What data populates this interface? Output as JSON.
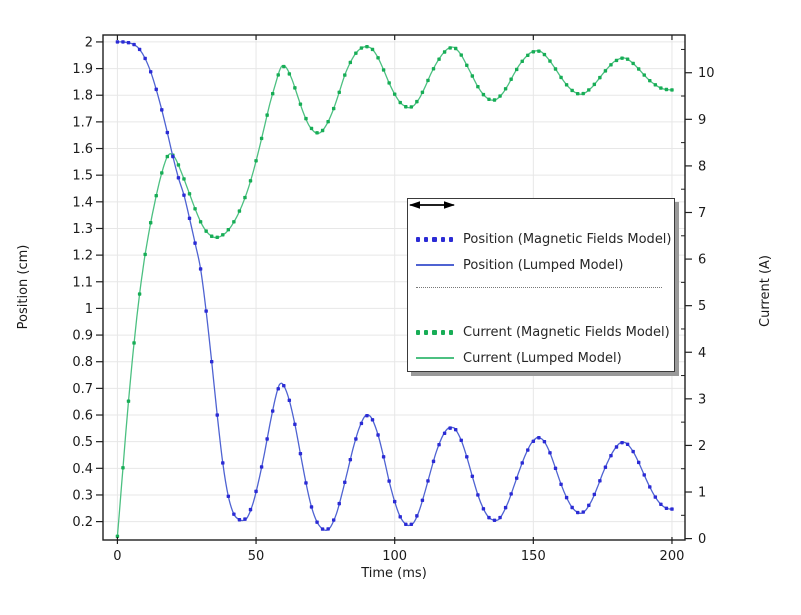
{
  "chart_data": {
    "type": "line",
    "title": "",
    "x_axis": {
      "label": "Time (ms)",
      "min": -5.2,
      "max": 204.7,
      "ticks": [
        {
          "v": 0,
          "label": "0"
        },
        {
          "v": 50,
          "label": "50"
        },
        {
          "v": 100,
          "label": "100"
        },
        {
          "v": 150,
          "label": "150"
        },
        {
          "v": 200,
          "label": "200"
        }
      ]
    },
    "left_axis": {
      "label": "Position (cm)",
      "min": 0.131,
      "max": 2.026,
      "ticks": [
        {
          "v": 2,
          "label": "2"
        },
        {
          "v": 1.9,
          "label": "1.9"
        },
        {
          "v": 1.8,
          "label": "1.8"
        },
        {
          "v": 1.7,
          "label": "1.7"
        },
        {
          "v": 1.6,
          "label": "1.6"
        },
        {
          "v": 1.5,
          "label": "1.5"
        },
        {
          "v": 1.4,
          "label": "1.4"
        },
        {
          "v": 1.3,
          "label": "1.3"
        },
        {
          "v": 1.2,
          "label": "1.2"
        },
        {
          "v": 1.1,
          "label": "1.1"
        },
        {
          "v": 1,
          "label": "1"
        },
        {
          "v": 0.9,
          "label": "0.9"
        },
        {
          "v": 0.8,
          "label": "0.8"
        },
        {
          "v": 0.7,
          "label": "0.7"
        },
        {
          "v": 0.6,
          "label": "0.6"
        },
        {
          "v": 0.5,
          "label": "0.5"
        },
        {
          "v": 0.4,
          "label": "0.4"
        },
        {
          "v": 0.3,
          "label": "0.3"
        },
        {
          "v": 0.2,
          "label": "0.2"
        }
      ]
    },
    "right_axis": {
      "label": "Current (A)",
      "min": -0.03,
      "max": 10.81,
      "ticks": [
        {
          "v": 10,
          "label": "10"
        },
        {
          "v": 9,
          "label": "9"
        },
        {
          "v": 8,
          "label": "8"
        },
        {
          "v": 7,
          "label": "7"
        },
        {
          "v": 6,
          "label": "6"
        },
        {
          "v": 5,
          "label": "5"
        },
        {
          "v": 4,
          "label": "4"
        },
        {
          "v": 3,
          "label": "3"
        },
        {
          "v": 2,
          "label": "2"
        },
        {
          "v": 1,
          "label": "1"
        },
        {
          "v": 0,
          "label": "0"
        }
      ],
      "minor_ticks": [
        0.5,
        1.5,
        2.5,
        3.5,
        4.5,
        5.5,
        6.5,
        7.5,
        8.5,
        9.5,
        10.5
      ]
    },
    "grid": {
      "color": "#e7e7e7",
      "vertical_at_x_ticks": true,
      "horizontal_at_left_ticks": true
    },
    "marker_interval_ms": 2,
    "legend": {
      "position": "middle-right",
      "left_arrow": "indicates left axis",
      "right_arrow": "indicates right axis"
    },
    "series": [
      {
        "name": "Position (Magnetic Fields Model)",
        "curve": "position",
        "axis": "left",
        "style": "dotted",
        "color": "#2B2BD5"
      },
      {
        "name": "Position (Lumped Model)",
        "curve": "position",
        "axis": "left",
        "style": "solid",
        "color": "#4F63D2"
      },
      {
        "name": "Current (Magnetic Fields Model)",
        "curve": "current",
        "axis": "right",
        "style": "dotted",
        "color": "#17AD56"
      },
      {
        "name": "Current (Lumped Model)",
        "curve": "current",
        "axis": "right",
        "style": "solid",
        "color": "#4CC081"
      }
    ],
    "curves": {
      "position": [
        [
          0,
          2.0
        ],
        [
          2,
          2.0
        ],
        [
          4,
          1.997
        ],
        [
          6,
          1.99
        ],
        [
          8,
          1.972
        ],
        [
          10,
          1.938
        ],
        [
          12,
          1.888
        ],
        [
          14,
          1.822
        ],
        [
          16,
          1.745
        ],
        [
          18,
          1.66
        ],
        [
          20,
          1.57
        ],
        [
          22,
          1.49
        ],
        [
          24,
          1.425
        ],
        [
          26,
          1.338
        ],
        [
          28,
          1.245
        ],
        [
          30,
          1.148
        ],
        [
          32,
          0.99
        ],
        [
          34,
          0.8
        ],
        [
          36,
          0.6
        ],
        [
          38,
          0.42
        ],
        [
          40,
          0.295
        ],
        [
          42,
          0.228
        ],
        [
          44,
          0.207
        ],
        [
          45.5,
          0.205
        ],
        [
          47,
          0.218
        ],
        [
          49,
          0.272
        ],
        [
          51,
          0.355
        ],
        [
          53,
          0.455
        ],
        [
          55,
          0.565
        ],
        [
          57,
          0.665
        ],
        [
          58.5,
          0.715
        ],
        [
          60,
          0.71
        ],
        [
          62,
          0.655
        ],
        [
          64,
          0.565
        ],
        [
          66,
          0.455
        ],
        [
          68,
          0.345
        ],
        [
          70,
          0.255
        ],
        [
          72,
          0.198
        ],
        [
          74,
          0.172
        ],
        [
          75.5,
          0.168
        ],
        [
          77,
          0.182
        ],
        [
          79,
          0.23
        ],
        [
          81,
          0.305
        ],
        [
          83,
          0.39
        ],
        [
          85,
          0.475
        ],
        [
          87,
          0.545
        ],
        [
          89,
          0.592
        ],
        [
          90.5,
          0.6
        ],
        [
          92,
          0.582
        ],
        [
          94,
          0.525
        ],
        [
          96,
          0.443
        ],
        [
          98,
          0.352
        ],
        [
          100,
          0.275
        ],
        [
          102,
          0.218
        ],
        [
          104,
          0.19
        ],
        [
          105.5,
          0.186
        ],
        [
          107,
          0.198
        ],
        [
          109,
          0.245
        ],
        [
          111,
          0.315
        ],
        [
          113,
          0.39
        ],
        [
          115,
          0.462
        ],
        [
          117,
          0.515
        ],
        [
          119,
          0.548
        ],
        [
          120.8,
          0.553
        ],
        [
          122,
          0.545
        ],
        [
          124,
          0.505
        ],
        [
          126,
          0.443
        ],
        [
          128,
          0.37
        ],
        [
          130,
          0.3
        ],
        [
          132,
          0.248
        ],
        [
          134,
          0.215
        ],
        [
          136,
          0.205
        ],
        [
          137.5,
          0.208
        ],
        [
          139,
          0.23
        ],
        [
          141,
          0.275
        ],
        [
          143,
          0.333
        ],
        [
          145,
          0.393
        ],
        [
          147,
          0.447
        ],
        [
          149,
          0.49
        ],
        [
          151,
          0.513
        ],
        [
          152.2,
          0.515
        ],
        [
          154,
          0.5
        ],
        [
          156,
          0.458
        ],
        [
          158,
          0.4
        ],
        [
          160,
          0.34
        ],
        [
          162,
          0.29
        ],
        [
          164,
          0.253
        ],
        [
          166,
          0.234
        ],
        [
          167.5,
          0.232
        ],
        [
          169,
          0.244
        ],
        [
          171,
          0.278
        ],
        [
          173,
          0.326
        ],
        [
          175,
          0.38
        ],
        [
          177,
          0.428
        ],
        [
          179,
          0.467
        ],
        [
          181,
          0.493
        ],
        [
          182.5,
          0.498
        ],
        [
          184,
          0.49
        ],
        [
          186,
          0.463
        ],
        [
          188,
          0.422
        ],
        [
          190,
          0.375
        ],
        [
          192,
          0.33
        ],
        [
          194,
          0.292
        ],
        [
          196,
          0.265
        ],
        [
          198,
          0.25
        ],
        [
          200,
          0.247
        ]
      ],
      "current": [
        [
          0,
          0.05
        ],
        [
          1,
          0.78
        ],
        [
          2,
          1.52
        ],
        [
          3,
          2.25
        ],
        [
          4,
          2.95
        ],
        [
          5,
          3.6
        ],
        [
          6,
          4.2
        ],
        [
          7,
          4.75
        ],
        [
          8,
          5.25
        ],
        [
          9,
          5.7
        ],
        [
          10,
          6.1
        ],
        [
          11,
          6.45
        ],
        [
          12,
          6.78
        ],
        [
          13,
          7.08
        ],
        [
          14,
          7.36
        ],
        [
          15,
          7.62
        ],
        [
          16,
          7.85
        ],
        [
          17,
          8.05
        ],
        [
          18,
          8.2
        ],
        [
          19,
          8.26
        ],
        [
          20,
          8.23
        ],
        [
          21,
          8.15
        ],
        [
          22,
          8.02
        ],
        [
          24,
          7.72
        ],
        [
          26,
          7.4
        ],
        [
          28,
          7.08
        ],
        [
          30,
          6.8
        ],
        [
          32,
          6.6
        ],
        [
          34,
          6.49
        ],
        [
          35.5,
          6.46
        ],
        [
          37,
          6.48
        ],
        [
          39,
          6.56
        ],
        [
          41,
          6.7
        ],
        [
          43,
          6.9
        ],
        [
          45,
          7.16
        ],
        [
          47,
          7.48
        ],
        [
          49,
          7.88
        ],
        [
          51,
          8.34
        ],
        [
          53,
          8.84
        ],
        [
          55,
          9.34
        ],
        [
          57,
          9.76
        ],
        [
          58.5,
          10.05
        ],
        [
          59.5,
          10.15
        ],
        [
          61,
          10.1
        ],
        [
          63,
          9.85
        ],
        [
          65,
          9.5
        ],
        [
          67,
          9.15
        ],
        [
          69,
          8.88
        ],
        [
          71,
          8.73
        ],
        [
          72.5,
          8.7
        ],
        [
          74,
          8.76
        ],
        [
          76,
          8.95
        ],
        [
          78,
          9.23
        ],
        [
          80,
          9.58
        ],
        [
          82,
          9.95
        ],
        [
          84,
          10.22
        ],
        [
          86,
          10.42
        ],
        [
          88,
          10.53
        ],
        [
          90,
          10.56
        ],
        [
          92,
          10.5
        ],
        [
          94,
          10.32
        ],
        [
          96,
          10.06
        ],
        [
          98,
          9.78
        ],
        [
          100,
          9.54
        ],
        [
          102,
          9.36
        ],
        [
          104,
          9.27
        ],
        [
          105.5,
          9.25
        ],
        [
          107,
          9.3
        ],
        [
          109,
          9.46
        ],
        [
          111,
          9.7
        ],
        [
          113,
          9.97
        ],
        [
          115,
          10.2
        ],
        [
          117,
          10.38
        ],
        [
          119,
          10.51
        ],
        [
          120.8,
          10.55
        ],
        [
          122,
          10.52
        ],
        [
          124,
          10.38
        ],
        [
          126,
          10.16
        ],
        [
          128,
          9.93
        ],
        [
          130,
          9.7
        ],
        [
          132,
          9.53
        ],
        [
          134,
          9.43
        ],
        [
          135.8,
          9.41
        ],
        [
          137,
          9.44
        ],
        [
          139,
          9.56
        ],
        [
          141,
          9.75
        ],
        [
          143,
          9.97
        ],
        [
          145,
          10.17
        ],
        [
          147,
          10.32
        ],
        [
          149,
          10.43
        ],
        [
          151,
          10.47
        ],
        [
          152.5,
          10.46
        ],
        [
          154,
          10.39
        ],
        [
          156,
          10.25
        ],
        [
          158,
          10.08
        ],
        [
          160,
          9.9
        ],
        [
          162,
          9.74
        ],
        [
          164,
          9.62
        ],
        [
          166,
          9.55
        ],
        [
          167.5,
          9.54
        ],
        [
          169,
          9.58
        ],
        [
          171,
          9.68
        ],
        [
          173,
          9.82
        ],
        [
          175,
          9.97
        ],
        [
          177,
          10.11
        ],
        [
          179,
          10.23
        ],
        [
          181,
          10.3
        ],
        [
          182.5,
          10.32
        ],
        [
          184,
          10.29
        ],
        [
          186,
          10.2
        ],
        [
          188,
          10.08
        ],
        [
          190,
          9.95
        ],
        [
          192,
          9.83
        ],
        [
          194,
          9.74
        ],
        [
          196,
          9.67
        ],
        [
          198,
          9.64
        ],
        [
          200,
          9.63
        ]
      ]
    }
  }
}
